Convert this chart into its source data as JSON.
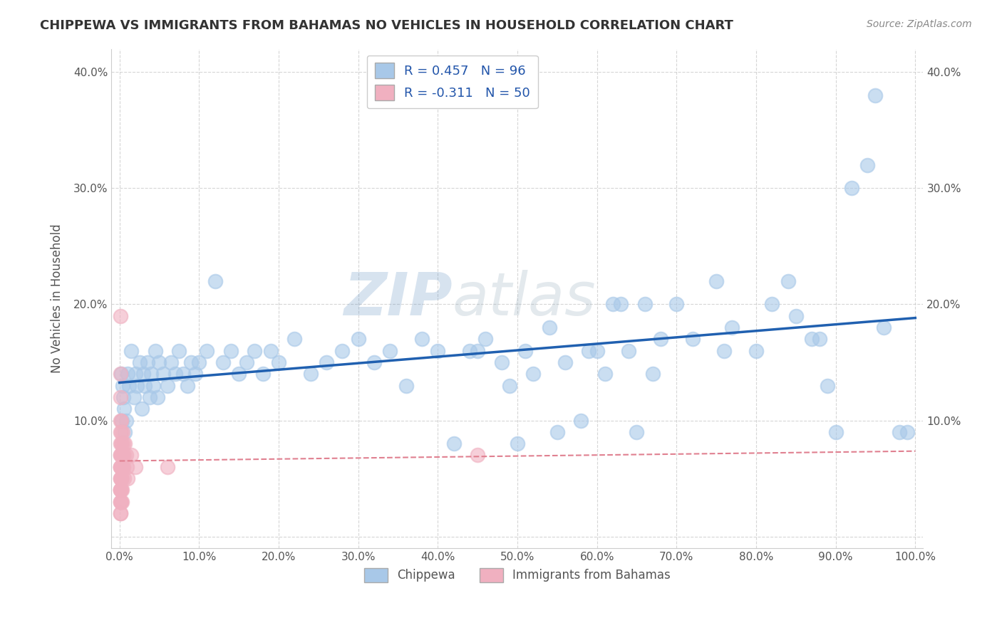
{
  "title": "CHIPPEWA VS IMMIGRANTS FROM BAHAMAS NO VEHICLES IN HOUSEHOLD CORRELATION CHART",
  "source": "Source: ZipAtlas.com",
  "chippewa_color": "#a8c8e8",
  "bahamas_color": "#f0b0c0",
  "regression_blue": "#2060b0",
  "regression_pink": "#e08090",
  "watermark_text": "ZIPatlas",
  "ylabel": "No Vehicles in Household",
  "legend_line1": "R = 0.457   N = 96",
  "legend_line2": "R = -0.311   N = 50",
  "chippewa_points": [
    [
      0.002,
      0.14
    ],
    [
      0.003,
      0.1
    ],
    [
      0.004,
      0.13
    ],
    [
      0.005,
      0.12
    ],
    [
      0.006,
      0.11
    ],
    [
      0.007,
      0.09
    ],
    [
      0.008,
      0.1
    ],
    [
      0.01,
      0.14
    ],
    [
      0.012,
      0.13
    ],
    [
      0.015,
      0.16
    ],
    [
      0.018,
      0.12
    ],
    [
      0.02,
      0.14
    ],
    [
      0.022,
      0.13
    ],
    [
      0.025,
      0.15
    ],
    [
      0.028,
      0.11
    ],
    [
      0.03,
      0.14
    ],
    [
      0.032,
      0.13
    ],
    [
      0.035,
      0.15
    ],
    [
      0.038,
      0.12
    ],
    [
      0.04,
      0.14
    ],
    [
      0.042,
      0.13
    ],
    [
      0.045,
      0.16
    ],
    [
      0.048,
      0.12
    ],
    [
      0.05,
      0.15
    ],
    [
      0.055,
      0.14
    ],
    [
      0.06,
      0.13
    ],
    [
      0.065,
      0.15
    ],
    [
      0.07,
      0.14
    ],
    [
      0.075,
      0.16
    ],
    [
      0.08,
      0.14
    ],
    [
      0.085,
      0.13
    ],
    [
      0.09,
      0.15
    ],
    [
      0.095,
      0.14
    ],
    [
      0.1,
      0.15
    ],
    [
      0.11,
      0.16
    ],
    [
      0.12,
      0.22
    ],
    [
      0.13,
      0.15
    ],
    [
      0.14,
      0.16
    ],
    [
      0.15,
      0.14
    ],
    [
      0.16,
      0.15
    ],
    [
      0.17,
      0.16
    ],
    [
      0.18,
      0.14
    ],
    [
      0.19,
      0.16
    ],
    [
      0.2,
      0.15
    ],
    [
      0.22,
      0.17
    ],
    [
      0.24,
      0.14
    ],
    [
      0.26,
      0.15
    ],
    [
      0.28,
      0.16
    ],
    [
      0.3,
      0.17
    ],
    [
      0.32,
      0.15
    ],
    [
      0.34,
      0.16
    ],
    [
      0.36,
      0.13
    ],
    [
      0.38,
      0.17
    ],
    [
      0.4,
      0.16
    ],
    [
      0.42,
      0.08
    ],
    [
      0.44,
      0.16
    ],
    [
      0.45,
      0.16
    ],
    [
      0.46,
      0.17
    ],
    [
      0.48,
      0.15
    ],
    [
      0.49,
      0.13
    ],
    [
      0.5,
      0.08
    ],
    [
      0.51,
      0.16
    ],
    [
      0.52,
      0.14
    ],
    [
      0.54,
      0.18
    ],
    [
      0.55,
      0.09
    ],
    [
      0.56,
      0.15
    ],
    [
      0.58,
      0.1
    ],
    [
      0.59,
      0.16
    ],
    [
      0.6,
      0.16
    ],
    [
      0.61,
      0.14
    ],
    [
      0.62,
      0.2
    ],
    [
      0.63,
      0.2
    ],
    [
      0.64,
      0.16
    ],
    [
      0.65,
      0.09
    ],
    [
      0.66,
      0.2
    ],
    [
      0.67,
      0.14
    ],
    [
      0.68,
      0.17
    ],
    [
      0.7,
      0.2
    ],
    [
      0.72,
      0.17
    ],
    [
      0.75,
      0.22
    ],
    [
      0.76,
      0.16
    ],
    [
      0.77,
      0.18
    ],
    [
      0.8,
      0.16
    ],
    [
      0.82,
      0.2
    ],
    [
      0.84,
      0.22
    ],
    [
      0.85,
      0.19
    ],
    [
      0.87,
      0.17
    ],
    [
      0.88,
      0.17
    ],
    [
      0.89,
      0.13
    ],
    [
      0.9,
      0.09
    ],
    [
      0.92,
      0.3
    ],
    [
      0.94,
      0.32
    ],
    [
      0.95,
      0.38
    ],
    [
      0.96,
      0.18
    ],
    [
      0.98,
      0.09
    ],
    [
      0.99,
      0.09
    ]
  ],
  "bahamas_points": [
    [
      0.001,
      0.19
    ],
    [
      0.001,
      0.14
    ],
    [
      0.001,
      0.12
    ],
    [
      0.001,
      0.1
    ],
    [
      0.001,
      0.09
    ],
    [
      0.001,
      0.08
    ],
    [
      0.001,
      0.07
    ],
    [
      0.001,
      0.07
    ],
    [
      0.001,
      0.06
    ],
    [
      0.001,
      0.06
    ],
    [
      0.001,
      0.06
    ],
    [
      0.001,
      0.05
    ],
    [
      0.001,
      0.05
    ],
    [
      0.001,
      0.04
    ],
    [
      0.001,
      0.04
    ],
    [
      0.001,
      0.04
    ],
    [
      0.001,
      0.03
    ],
    [
      0.001,
      0.03
    ],
    [
      0.001,
      0.02
    ],
    [
      0.001,
      0.02
    ],
    [
      0.002,
      0.1
    ],
    [
      0.002,
      0.09
    ],
    [
      0.002,
      0.08
    ],
    [
      0.002,
      0.07
    ],
    [
      0.002,
      0.06
    ],
    [
      0.002,
      0.05
    ],
    [
      0.002,
      0.05
    ],
    [
      0.002,
      0.04
    ],
    [
      0.002,
      0.03
    ],
    [
      0.003,
      0.08
    ],
    [
      0.003,
      0.07
    ],
    [
      0.003,
      0.06
    ],
    [
      0.003,
      0.05
    ],
    [
      0.003,
      0.04
    ],
    [
      0.003,
      0.03
    ],
    [
      0.004,
      0.09
    ],
    [
      0.004,
      0.07
    ],
    [
      0.004,
      0.06
    ],
    [
      0.005,
      0.08
    ],
    [
      0.005,
      0.06
    ],
    [
      0.006,
      0.07
    ],
    [
      0.006,
      0.05
    ],
    [
      0.007,
      0.08
    ],
    [
      0.008,
      0.07
    ],
    [
      0.009,
      0.06
    ],
    [
      0.01,
      0.05
    ],
    [
      0.015,
      0.07
    ],
    [
      0.02,
      0.06
    ],
    [
      0.06,
      0.06
    ],
    [
      0.45,
      0.07
    ]
  ]
}
